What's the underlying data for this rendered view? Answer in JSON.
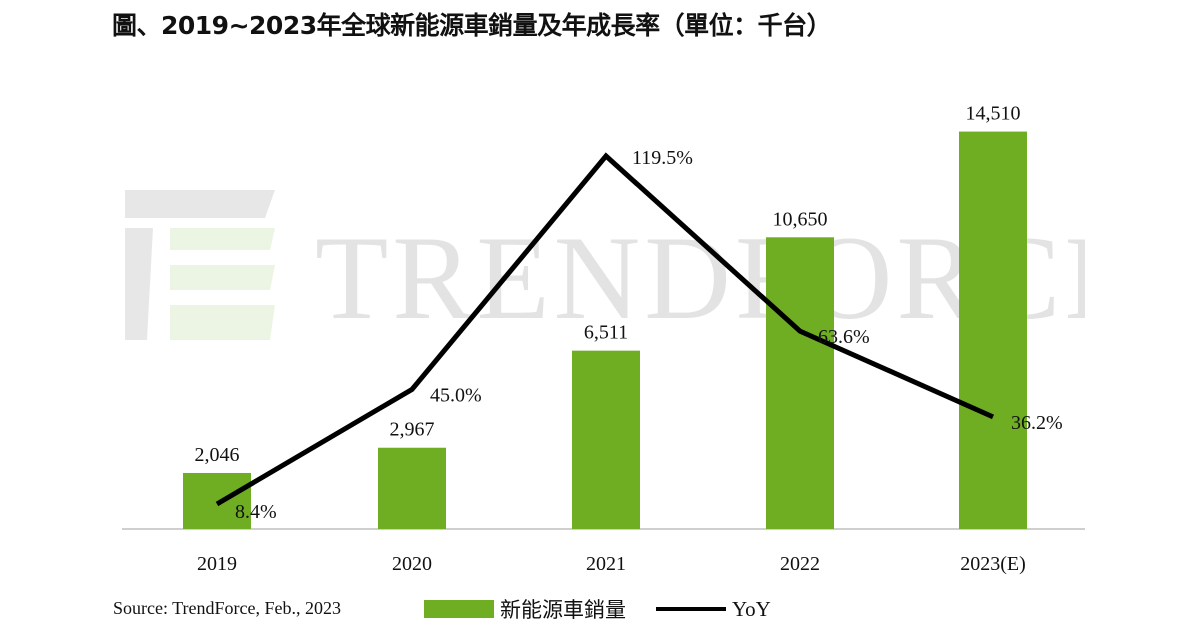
{
  "title": "圖、2019~2023年全球新能源車銷量及年成長率（單位：千台）",
  "source": "Source: TrendForce, Feb., 2023",
  "watermark": "TRENDFORCE",
  "colors": {
    "bar": "#6fad23",
    "line": "#000000",
    "axis": "#bfbfbf"
  },
  "legend": {
    "bar_label": "新能源車銷量",
    "line_label": "YoY"
  },
  "chart_data": {
    "type": "bar",
    "categories": [
      "2019",
      "2020",
      "2021",
      "2022",
      "2023(E)"
    ],
    "series": [
      {
        "name": "新能源車銷量",
        "type": "bar",
        "values": [
          2046,
          2967,
          6511,
          10650,
          14510
        ],
        "labels": [
          "2,046",
          "2,967",
          "6,511",
          "10,650",
          "14,510"
        ]
      },
      {
        "name": "YoY",
        "type": "line",
        "values": [
          8.4,
          45.0,
          119.5,
          63.6,
          36.2
        ],
        "labels": [
          "8.4%",
          "45.0%",
          "119.5%",
          "63.6%",
          "36.2%"
        ]
      }
    ],
    "ylim_bar": [
      0,
      16000
    ],
    "ylim_line": [
      0,
      130
    ],
    "grid": false,
    "legend_position": "bottom"
  }
}
